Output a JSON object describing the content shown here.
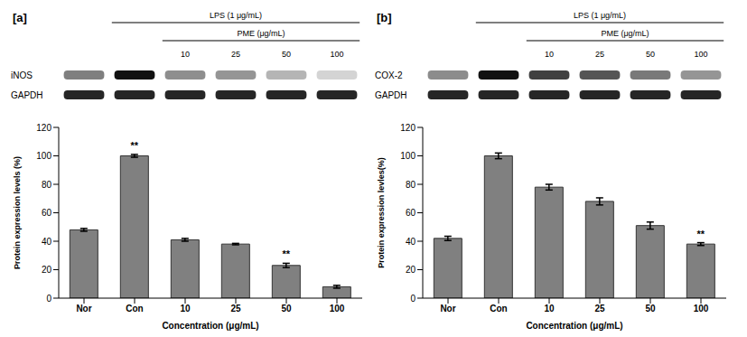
{
  "chart_data": [
    {
      "type": "bar",
      "title": "[a]",
      "categories": [
        "Nor",
        "Con",
        "10",
        "25",
        "50",
        "100"
      ],
      "values": [
        48,
        100,
        41,
        38,
        23,
        8
      ],
      "errors": [
        1,
        1,
        1,
        0.5,
        1.5,
        1
      ],
      "significance": [
        null,
        "**",
        null,
        null,
        "**",
        null
      ],
      "color": "#808080",
      "ylim": [
        0,
        120
      ],
      "yticks": [
        0,
        20,
        40,
        60,
        80,
        100,
        120
      ],
      "xlabel": "Concentration (μg/mL)",
      "ylabel": "Protein expression levels (%)",
      "grid": false,
      "blot": {
        "treatment": "LPS (1 μg/mL)",
        "extract": "PME (μg/mL)",
        "doses": [
          "10",
          "25",
          "50",
          "100"
        ],
        "proteins": [
          "iNOS",
          "GAPDH"
        ]
      }
    },
    {
      "type": "bar",
      "title": "[b]",
      "categories": [
        "Nor",
        "Con",
        "10",
        "25",
        "50",
        "100"
      ],
      "values": [
        42,
        100,
        78,
        68,
        51,
        38
      ],
      "errors": [
        1.5,
        2,
        2,
        2.5,
        2.5,
        1
      ],
      "significance": [
        null,
        null,
        null,
        null,
        null,
        "**"
      ],
      "color": "#808080",
      "ylim": [
        0,
        120
      ],
      "yticks": [
        0,
        20,
        40,
        60,
        80,
        100,
        120
      ],
      "xlabel": "Concentration (μg/mL)",
      "ylabel": "Protein expression levles(%)",
      "grid": false,
      "blot": {
        "treatment": "LPS (1 μg/mL)",
        "extract": "PME (μg/mL)",
        "doses": [
          "10",
          "25",
          "50",
          "100"
        ],
        "proteins": [
          "COX-2",
          "GAPDH"
        ]
      }
    }
  ]
}
